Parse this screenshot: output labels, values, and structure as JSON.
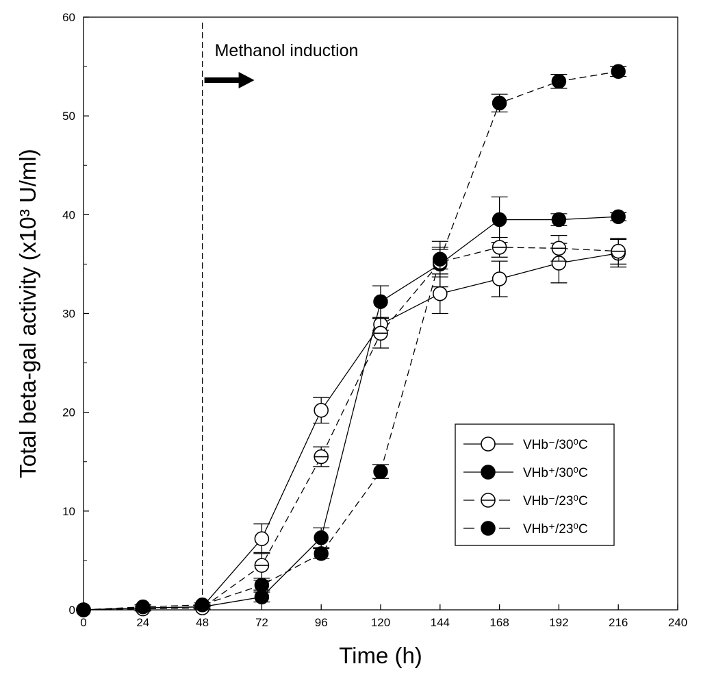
{
  "chart_data": {
    "type": "line",
    "title": "",
    "xlabel": "Time (h)",
    "ylabel": "Total beta-gal activity (x10³ U/ml)",
    "xlim": [
      0,
      240
    ],
    "ylim": [
      0,
      60
    ],
    "xticks": [
      0,
      24,
      48,
      72,
      96,
      120,
      144,
      168,
      192,
      216,
      240
    ],
    "yticks": [
      0,
      10,
      20,
      30,
      40,
      50,
      60
    ],
    "grid": false,
    "legend_position": "center-right",
    "annotation": {
      "text": "Methanol induction",
      "x": 48
    },
    "series": [
      {
        "name": "VHb⁻/30⁰C",
        "marker": "open-circle",
        "line": "solid",
        "x": [
          0,
          24,
          48,
          72,
          96,
          120,
          144,
          168,
          192,
          216
        ],
        "y": [
          0,
          0.2,
          0.3,
          7.2,
          20.2,
          28.9,
          32.0,
          33.5,
          35.1,
          36.1
        ],
        "err": [
          0,
          0.3,
          0.2,
          1.5,
          1.3,
          0.6,
          2.0,
          1.8,
          2.0,
          1.4
        ]
      },
      {
        "name": "VHb⁺/30⁰C",
        "marker": "filled-circle",
        "line": "solid",
        "x": [
          0,
          24,
          48,
          72,
          96,
          120,
          144,
          168,
          192,
          216
        ],
        "y": [
          0,
          0.2,
          0.3,
          1.3,
          7.3,
          31.2,
          35.0,
          39.5,
          39.5,
          39.8
        ],
        "err": [
          0,
          0.3,
          0.2,
          0.5,
          1.0,
          1.6,
          2.3,
          2.3,
          0.6,
          0.4
        ]
      },
      {
        "name": "VHb⁻/23⁰C",
        "marker": "half-circle",
        "line": "dashed",
        "x": [
          0,
          24,
          48,
          72,
          96,
          120,
          144,
          168,
          192,
          216
        ],
        "y": [
          0,
          0.1,
          0.2,
          4.5,
          15.5,
          28.0,
          35.2,
          36.7,
          36.6,
          36.3
        ],
        "err": [
          0,
          0.2,
          0.2,
          1.3,
          1.0,
          1.5,
          1.5,
          1.0,
          1.3,
          1.3
        ]
      },
      {
        "name": "VHb⁺/23⁰C",
        "marker": "filled-circle",
        "line": "dashed",
        "x": [
          0,
          24,
          48,
          72,
          96,
          120,
          144,
          168,
          192,
          216
        ],
        "y": [
          0,
          0.3,
          0.5,
          2.5,
          5.7,
          14.0,
          35.5,
          51.3,
          53.5,
          54.5
        ],
        "err": [
          0,
          0.2,
          0.2,
          0.5,
          0.5,
          0.7,
          1.0,
          0.9,
          0.7,
          0.5
        ]
      }
    ]
  }
}
